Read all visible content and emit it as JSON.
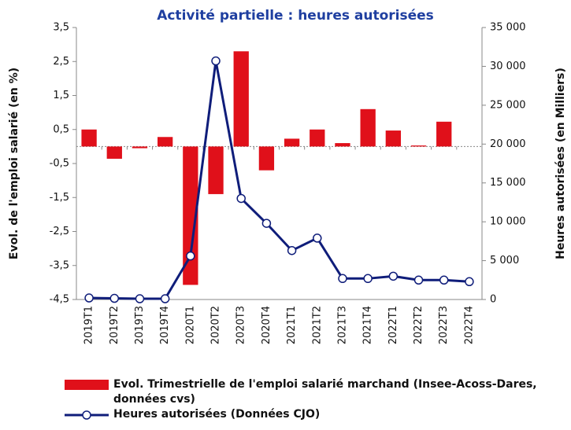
{
  "chart_data": {
    "type": "bar",
    "title": "Activité partielle : heures autorisées",
    "y_label": "Evol. de l'emploi salarié (en %)",
    "y2_label": "Heures autorisées (en Milliers)",
    "categories": [
      "2019T1",
      "2019T2",
      "2019T3",
      "2019T4",
      "2020T1",
      "2020T2",
      "2020T3",
      "2020T4",
      "2021T1",
      "2021T2",
      "2021T3",
      "2021T4",
      "2022T1",
      "2022T2",
      "2022T3",
      "2022T4"
    ],
    "series": [
      {
        "name": "Evol. Trimestrielle de l'emploi salarié marchand (Insee-Acoss-Dares, données cvs)",
        "type": "bar",
        "axis": "y",
        "color": "#e0101a",
        "values": [
          0.5,
          -0.36,
          -0.05,
          0.28,
          -4.07,
          -1.4,
          2.8,
          -0.7,
          0.23,
          0.5,
          0.1,
          1.1,
          0.47,
          0.03,
          0.73,
          0
        ]
      },
      {
        "name": "Heures autorisées (Données CJO)",
        "type": "line",
        "axis": "y2",
        "color": "#0f1d7a",
        "values": [
          200,
          150,
          100,
          100,
          5600,
          30700,
          13000,
          9800,
          6300,
          7900,
          2700,
          2700,
          3000,
          2500,
          2500,
          2300
        ]
      }
    ],
    "ylim": [
      -4.5,
      3.5
    ],
    "yticks": [
      {
        "value": -4.5,
        "label": "-4,5"
      },
      {
        "value": -3.5,
        "label": "-3,5"
      },
      {
        "value": -2.5,
        "label": "-2,5"
      },
      {
        "value": -1.5,
        "label": "-1,5"
      },
      {
        "value": -0.5,
        "label": "-0,5"
      },
      {
        "value": 0.5,
        "label": "0,5"
      },
      {
        "value": 1.5,
        "label": "1,5"
      },
      {
        "value": 2.5,
        "label": "2,5"
      },
      {
        "value": 3.5,
        "label": "3,5"
      }
    ],
    "y2lim": [
      0,
      35000
    ],
    "y2ticks": [
      0,
      {
        "value": 5000,
        "label": "5 000"
      },
      {
        "value": 10000,
        "label": "10 000"
      },
      {
        "value": 15000,
        "label": "15 000"
      },
      {
        "value": 20000,
        "label": "20 000"
      },
      {
        "value": 25000,
        "label": "25 000"
      },
      {
        "value": 30000,
        "label": "30 000"
      },
      {
        "value": 35000,
        "label": "35 000"
      }
    ],
    "grid": false
  }
}
